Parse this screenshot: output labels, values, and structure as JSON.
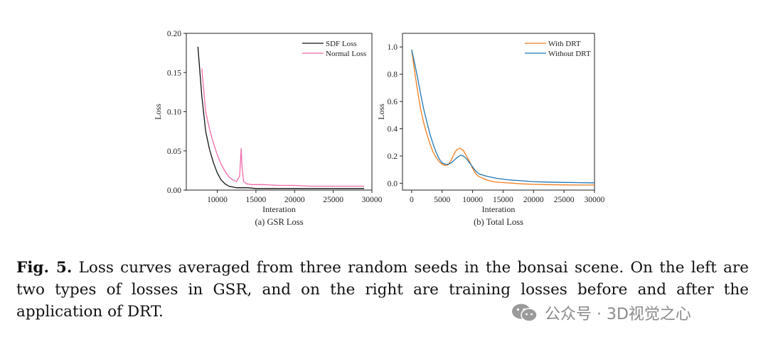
{
  "chart_data": [
    {
      "type": "line",
      "subtitle": "(a) GSR Loss",
      "xlabel": "Interation",
      "ylabel": "Loss",
      "xlim": [
        6000,
        30000
      ],
      "ylim": [
        0,
        0.2
      ],
      "xticks": [
        10000,
        15000,
        20000,
        25000,
        30000
      ],
      "yticks": [
        0.0,
        0.05,
        0.1,
        0.15,
        0.2
      ],
      "ytick_labels": [
        "0.00",
        "0.05",
        "0.10",
        "0.15",
        "0.20"
      ],
      "legend_position": "top-right",
      "series": [
        {
          "name": "SDF Loss",
          "color": "#111111",
          "x": [
            7500,
            8000,
            8500,
            9000,
            9500,
            10000,
            10500,
            11000,
            11500,
            12000,
            12500,
            13000,
            14000,
            15000,
            16000,
            18000,
            20000,
            22000,
            24000,
            26000,
            28000,
            29000
          ],
          "y": [
            0.183,
            0.12,
            0.075,
            0.052,
            0.035,
            0.022,
            0.013,
            0.008,
            0.005,
            0.004,
            0.003,
            0.003,
            0.003,
            0.002,
            0.002,
            0.002,
            0.002,
            0.002,
            0.002,
            0.002,
            0.002,
            0.002
          ]
        },
        {
          "name": "Normal Loss",
          "color": "#f06aa8",
          "x": [
            8000,
            8500,
            9000,
            9500,
            10000,
            10500,
            11000,
            11500,
            12000,
            12500,
            12900,
            13100,
            13200,
            13400,
            13800,
            14500,
            16000,
            18000,
            20000,
            22000,
            24000,
            26000,
            28000,
            29000
          ],
          "y": [
            0.155,
            0.1,
            0.078,
            0.06,
            0.045,
            0.033,
            0.024,
            0.017,
            0.013,
            0.011,
            0.018,
            0.053,
            0.03,
            0.011,
            0.008,
            0.007,
            0.007,
            0.006,
            0.006,
            0.005,
            0.005,
            0.005,
            0.005,
            0.005
          ]
        }
      ]
    },
    {
      "type": "line",
      "subtitle": "(b) Total Loss",
      "xlabel": "Interation",
      "ylabel": "Loss",
      "xlim": [
        -1500,
        30000
      ],
      "ylim": [
        -0.05,
        1.1
      ],
      "xticks": [
        0,
        5000,
        10000,
        15000,
        20000,
        25000,
        30000
      ],
      "yticks": [
        0.0,
        0.2,
        0.4,
        0.6,
        0.8,
        1.0
      ],
      "ytick_labels": [
        "0.0",
        "0.2",
        "0.4",
        "0.6",
        "0.8",
        "1.0"
      ],
      "legend_position": "top-right",
      "series": [
        {
          "name": "With DRT",
          "color": "#f07c1e",
          "x": [
            0,
            500,
            1000,
            1500,
            2000,
            2500,
            3000,
            3500,
            4000,
            4500,
            5000,
            5500,
            6000,
            6500,
            7000,
            7500,
            8000,
            8500,
            9000,
            9500,
            10000,
            10500,
            11000,
            11500,
            12000,
            13000,
            14000,
            16000,
            18000,
            20000,
            22000,
            25000,
            28000,
            30000
          ],
          "y": [
            0.98,
            0.82,
            0.67,
            0.54,
            0.44,
            0.36,
            0.29,
            0.23,
            0.19,
            0.16,
            0.14,
            0.13,
            0.135,
            0.17,
            0.22,
            0.25,
            0.255,
            0.24,
            0.2,
            0.16,
            0.11,
            0.07,
            0.05,
            0.04,
            0.03,
            0.015,
            0.008,
            0.002,
            -0.004,
            -0.008,
            -0.01,
            -0.012,
            -0.013,
            -0.013
          ]
        },
        {
          "name": "Without DRT",
          "color": "#1f77b4",
          "x": [
            0,
            500,
            1000,
            1500,
            2000,
            2500,
            3000,
            3500,
            4000,
            4500,
            5000,
            5500,
            6000,
            6500,
            7000,
            7500,
            8000,
            8500,
            9000,
            9500,
            10000,
            10500,
            11000,
            12000,
            13000,
            14000,
            15000,
            16000,
            18000,
            20000,
            22000,
            25000,
            28000,
            30000
          ],
          "y": [
            0.98,
            0.88,
            0.77,
            0.65,
            0.54,
            0.45,
            0.36,
            0.29,
            0.23,
            0.18,
            0.15,
            0.14,
            0.14,
            0.15,
            0.17,
            0.19,
            0.205,
            0.2,
            0.18,
            0.15,
            0.12,
            0.09,
            0.07,
            0.055,
            0.045,
            0.036,
            0.03,
            0.025,
            0.018,
            0.012,
            0.009,
            0.006,
            0.004,
            0.003
          ]
        }
      ]
    }
  ],
  "caption": {
    "label": "Fig. 5.",
    "text": " Loss curves averaged from three random seeds in the bonsai scene. On the left are two types of losses in GSR, and on the right are training losses before and after the application of DRT."
  },
  "watermark": {
    "text": "公众号 · 3D视觉之心",
    "icon": "wechat-icon"
  }
}
